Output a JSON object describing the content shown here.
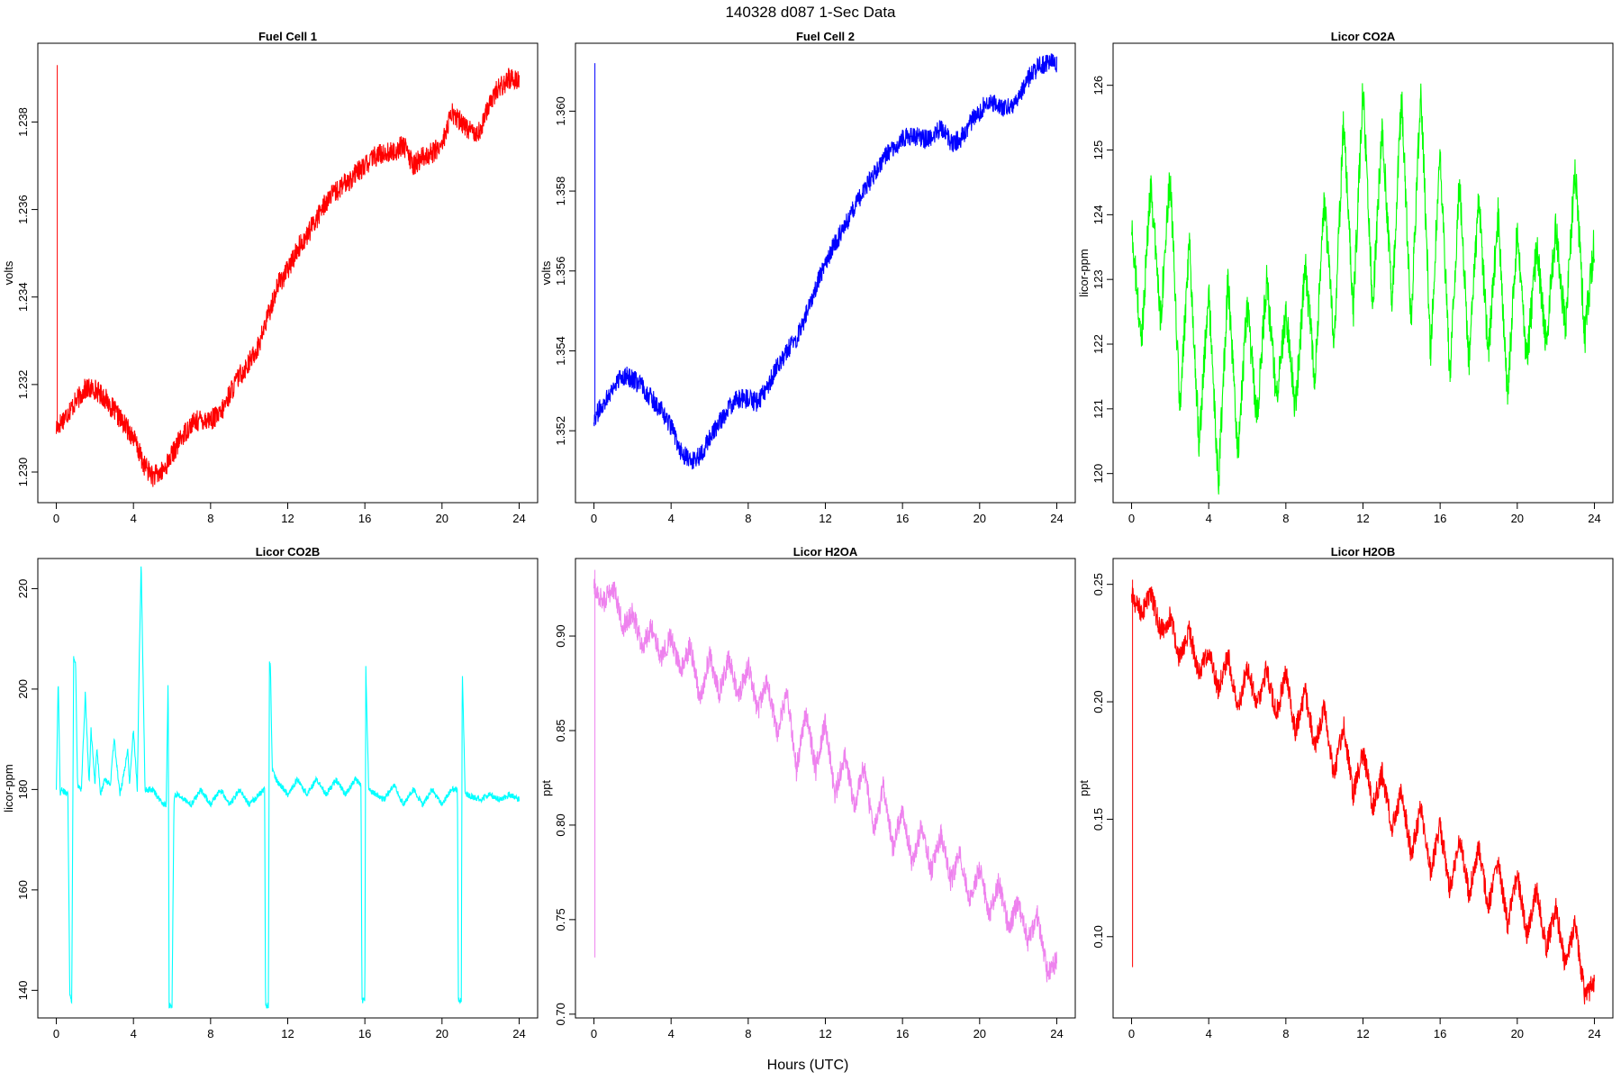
{
  "figure": {
    "title": "140328   d087   1-Sec Data",
    "xlabel": "Hours (UTC)"
  },
  "chart_data": [
    {
      "type": "line",
      "title": "Fuel Cell 1",
      "ylabel": "volts",
      "color": "#ff0000",
      "xlim": [
        0,
        24
      ],
      "ylim": [
        1.2293,
        1.2398
      ],
      "xticks": [
        0,
        4,
        8,
        12,
        16,
        20,
        24
      ],
      "yticks": [
        1.23,
        1.232,
        1.234,
        1.236,
        1.238
      ],
      "ytick_labels": [
        "1.230",
        "1.232",
        "1.234",
        "1.236",
        "1.238"
      ],
      "noise": 0.00025,
      "spike": {
        "x": 0.05,
        "from": 1.231,
        "to": 1.2393
      },
      "x": [
        0,
        0.5,
        1,
        1.5,
        2,
        2.5,
        3,
        3.5,
        4,
        4.5,
        5,
        5.5,
        6,
        6.5,
        7,
        7.5,
        8,
        8.5,
        9,
        9.5,
        10,
        10.5,
        11,
        11.5,
        12,
        12.5,
        13,
        13.5,
        14,
        14.5,
        15,
        15.5,
        16,
        16.5,
        17,
        17.5,
        18,
        18.5,
        19,
        19.5,
        20,
        20.5,
        21,
        21.5,
        22,
        22.5,
        23,
        23.5,
        24
      ],
      "y": [
        1.231,
        1.2313,
        1.2316,
        1.2319,
        1.2319,
        1.2317,
        1.2314,
        1.2311,
        1.2308,
        1.2302,
        1.2299,
        1.23,
        1.2304,
        1.2308,
        1.2311,
        1.2312,
        1.2312,
        1.2313,
        1.2318,
        1.2322,
        1.2325,
        1.2329,
        1.2336,
        1.2343,
        1.2346,
        1.2351,
        1.2354,
        1.2358,
        1.2362,
        1.2364,
        1.2366,
        1.2368,
        1.237,
        1.2372,
        1.2373,
        1.2373,
        1.2375,
        1.237,
        1.2372,
        1.2373,
        1.2375,
        1.2382,
        1.238,
        1.2378,
        1.2378,
        1.2385,
        1.2388,
        1.239,
        1.239
      ]
    },
    {
      "type": "line",
      "title": "Fuel Cell 2",
      "ylabel": "volts",
      "color": "#0000ff",
      "xlim": [
        0,
        24
      ],
      "ylim": [
        1.3502,
        1.3617
      ],
      "xticks": [
        0,
        4,
        8,
        12,
        16,
        20,
        24
      ],
      "yticks": [
        1.352,
        1.354,
        1.356,
        1.358,
        1.36
      ],
      "ytick_labels": [
        "1.352",
        "1.354",
        "1.356",
        "1.358",
        "1.360"
      ],
      "noise": 0.00025,
      "spike": {
        "x": 0.05,
        "from": 1.3523,
        "to": 1.3612
      },
      "x": [
        0,
        0.5,
        1,
        1.5,
        2,
        2.5,
        3,
        3.5,
        4,
        4.5,
        5,
        5.5,
        6,
        6.5,
        7,
        7.5,
        8,
        8.5,
        9,
        9.5,
        10,
        10.5,
        11,
        11.5,
        12,
        12.5,
        13,
        13.5,
        14,
        14.5,
        15,
        15.5,
        16,
        16.5,
        17,
        17.5,
        18,
        18.5,
        19,
        19.5,
        20,
        20.5,
        21,
        21.5,
        22,
        22.5,
        23,
        23.5,
        24
      ],
      "y": [
        1.3523,
        1.3527,
        1.3531,
        1.3534,
        1.3533,
        1.3531,
        1.3528,
        1.3525,
        1.3521,
        1.3515,
        1.3512,
        1.3514,
        1.3518,
        1.3522,
        1.3526,
        1.3528,
        1.3528,
        1.3527,
        1.3531,
        1.3536,
        1.354,
        1.3543,
        1.3549,
        1.3556,
        1.3562,
        1.3567,
        1.3571,
        1.3576,
        1.358,
        1.3584,
        1.3588,
        1.3591,
        1.3593,
        1.3594,
        1.3593,
        1.3593,
        1.3596,
        1.3592,
        1.3593,
        1.3597,
        1.36,
        1.3603,
        1.3601,
        1.3601,
        1.3603,
        1.3608,
        1.3611,
        1.3612,
        1.3612
      ]
    },
    {
      "type": "line",
      "title": "Licor CO2A",
      "ylabel": "licor-ppm",
      "color": "#00ff00",
      "xlim": [
        0,
        24
      ],
      "ylim": [
        119.55,
        126.65
      ],
      "xticks": [
        0,
        4,
        8,
        12,
        16,
        20,
        24
      ],
      "yticks": [
        120,
        121,
        122,
        123,
        124,
        125,
        126
      ],
      "ytick_labels": [
        "120",
        "121",
        "122",
        "123",
        "124",
        "125",
        "126"
      ],
      "noise": 0.3,
      "spike": null,
      "x": [
        0,
        0.5,
        1,
        1.5,
        2,
        2.5,
        3,
        3.5,
        4,
        4.5,
        5,
        5.5,
        6,
        6.5,
        7,
        7.5,
        8,
        8.5,
        9,
        9.5,
        10,
        10.5,
        11,
        11.5,
        12,
        12.5,
        13,
        13.5,
        14,
        14.5,
        15,
        15.5,
        16,
        16.5,
        17,
        17.5,
        18,
        18.5,
        19,
        19.5,
        20,
        20.5,
        21,
        21.5,
        22,
        22.5,
        23,
        23.5,
        24
      ],
      "y": [
        123.8,
        122.0,
        124.5,
        122.4,
        124.6,
        121.0,
        123.5,
        120.5,
        122.8,
        119.8,
        123.0,
        120.3,
        122.6,
        120.8,
        123.0,
        121.2,
        122.5,
        121.0,
        123.2,
        121.5,
        124.2,
        122.0,
        125.5,
        122.5,
        126.0,
        122.6,
        125.4,
        122.6,
        125.8,
        122.3,
        126.0,
        121.9,
        125.0,
        121.5,
        124.5,
        121.7,
        124.3,
        121.8,
        124.0,
        121.2,
        123.8,
        121.7,
        123.5,
        122.0,
        123.8,
        122.2,
        124.8,
        122.1,
        123.6
      ]
    },
    {
      "type": "line",
      "title": "Licor CO2B",
      "ylabel": "licor-ppm",
      "color": "#00ffff",
      "xlim": [
        0,
        24
      ],
      "ylim": [
        134.5,
        226.0
      ],
      "xticks": [
        0,
        4,
        8,
        12,
        16,
        20,
        24
      ],
      "yticks": [
        140,
        160,
        180,
        200,
        220
      ],
      "ytick_labels": [
        "140",
        "160",
        "180",
        "200",
        "220"
      ],
      "noise": 0.6,
      "spike": null,
      "x": [
        0,
        0.1,
        0.2,
        0.3,
        0.6,
        0.7,
        0.8,
        0.9,
        1.0,
        1.1,
        1.3,
        1.5,
        1.7,
        1.8,
        2.0,
        2.1,
        2.3,
        2.5,
        2.8,
        3.0,
        3.3,
        3.5,
        3.7,
        3.8,
        4.0,
        4.2,
        4.3,
        4.4,
        4.6,
        5.0,
        5.5,
        5.7,
        5.8,
        5.85,
        6.0,
        6.1,
        6.15,
        6.3,
        7.0,
        7.5,
        8.0,
        8.5,
        9.0,
        9.5,
        10.0,
        10.5,
        10.8,
        10.85,
        11.0,
        11.05,
        11.1,
        11.2,
        11.4,
        12.0,
        12.5,
        13.0,
        13.5,
        14.0,
        14.5,
        15.0,
        15.5,
        15.8,
        15.85,
        16.0,
        16.05,
        16.2,
        17.0,
        17.5,
        18.0,
        18.5,
        19.0,
        19.5,
        20.0,
        20.5,
        20.8,
        20.85,
        21.0,
        21.05,
        21.2,
        22.0,
        22.5,
        23.0,
        23.5,
        24.0
      ],
      "y": [
        180,
        202,
        179,
        180,
        179,
        139,
        138,
        206,
        205,
        181,
        180,
        199,
        181,
        192,
        181,
        188,
        179,
        182,
        181,
        190,
        179,
        183,
        188,
        181,
        192,
        180,
        206,
        225,
        180,
        180,
        177,
        177,
        203,
        137,
        137,
        177,
        179,
        179,
        177,
        180,
        177,
        180,
        177,
        180,
        177,
        179,
        180,
        137,
        137,
        205,
        205,
        184,
        182,
        179,
        182,
        179,
        182,
        179,
        182,
        179,
        182,
        181,
        138,
        138,
        204,
        180,
        178,
        181,
        177,
        180,
        177,
        180,
        177,
        180,
        180,
        138,
        138,
        204,
        179,
        178,
        179,
        178,
        179,
        178
      ]
    },
    {
      "type": "line",
      "title": "Licor H2OA",
      "ylabel": "ppt",
      "color": "#ee82ee",
      "xlim": [
        0,
        24
      ],
      "ylim": [
        0.698,
        0.941
      ],
      "xticks": [
        0,
        4,
        8,
        12,
        16,
        20,
        24
      ],
      "yticks": [
        0.7,
        0.75,
        0.8,
        0.85,
        0.9
      ],
      "ytick_labels": [
        "0.70",
        "0.75",
        "0.80",
        "0.85",
        "0.90"
      ],
      "noise": 0.006,
      "spike": {
        "x": 0.05,
        "from": 0.73,
        "to": 0.935
      },
      "x": [
        0,
        0.5,
        1,
        1.5,
        2,
        2.5,
        3,
        3.5,
        4,
        4.5,
        5,
        5.5,
        6,
        6.5,
        7,
        7.5,
        8,
        8.5,
        9,
        9.5,
        10,
        10.5,
        11,
        11.5,
        12,
        12.5,
        13,
        13.5,
        14,
        14.5,
        15,
        15.5,
        16,
        16.5,
        17,
        17.5,
        18,
        18.5,
        19,
        19.5,
        20,
        20.5,
        21,
        21.5,
        22,
        22.5,
        23,
        23.5,
        24
      ],
      "y": [
        0.925,
        0.918,
        0.926,
        0.905,
        0.912,
        0.895,
        0.905,
        0.888,
        0.9,
        0.881,
        0.895,
        0.866,
        0.89,
        0.87,
        0.888,
        0.868,
        0.885,
        0.86,
        0.876,
        0.848,
        0.87,
        0.829,
        0.86,
        0.829,
        0.855,
        0.815,
        0.838,
        0.81,
        0.832,
        0.796,
        0.82,
        0.788,
        0.808,
        0.78,
        0.8,
        0.775,
        0.795,
        0.77,
        0.785,
        0.76,
        0.778,
        0.752,
        0.77,
        0.745,
        0.76,
        0.738,
        0.752,
        0.722,
        0.728
      ]
    },
    {
      "type": "line",
      "title": "Licor H2OB",
      "ylabel": "ppt",
      "color": "#ff0000",
      "xlim": [
        0,
        24
      ],
      "ylim": [
        0.0654,
        0.261
      ],
      "xticks": [
        0,
        4,
        8,
        12,
        16,
        20,
        24
      ],
      "yticks": [
        0.1,
        0.15,
        0.2,
        0.25
      ],
      "ytick_labels": [
        "0.10",
        "0.15",
        "0.20",
        "0.25"
      ],
      "noise": 0.005,
      "spike": {
        "x": 0.05,
        "from": 0.087,
        "to": 0.252
      },
      "x": [
        0,
        0.5,
        1,
        1.5,
        2,
        2.5,
        3,
        3.5,
        4,
        4.5,
        5,
        5.5,
        6,
        6.5,
        7,
        7.5,
        8,
        8.5,
        9,
        9.5,
        10,
        10.5,
        11,
        11.5,
        12,
        12.5,
        13,
        13.5,
        14,
        14.5,
        15,
        15.5,
        16,
        16.5,
        17,
        17.5,
        18,
        18.5,
        19,
        19.5,
        20,
        20.5,
        21,
        21.5,
        22,
        22.5,
        23,
        23.5,
        24
      ],
      "y": [
        0.245,
        0.238,
        0.246,
        0.23,
        0.236,
        0.218,
        0.23,
        0.212,
        0.222,
        0.205,
        0.22,
        0.196,
        0.215,
        0.199,
        0.214,
        0.194,
        0.212,
        0.187,
        0.205,
        0.18,
        0.198,
        0.168,
        0.19,
        0.16,
        0.18,
        0.155,
        0.17,
        0.146,
        0.162,
        0.135,
        0.155,
        0.128,
        0.147,
        0.12,
        0.142,
        0.118,
        0.138,
        0.112,
        0.132,
        0.105,
        0.127,
        0.1,
        0.12,
        0.095,
        0.112,
        0.088,
        0.105,
        0.075,
        0.08
      ]
    }
  ]
}
